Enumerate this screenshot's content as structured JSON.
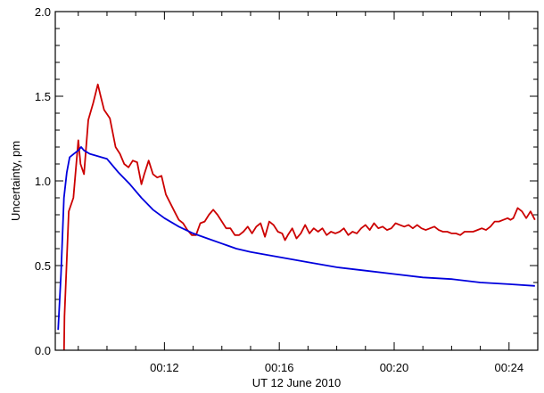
{
  "chart_data": {
    "type": "line",
    "title": "",
    "xlabel": "UT 12 June 2010",
    "ylabel": "Uncertainty, pm",
    "x_unit": "minutes (UT clock time 00:MM)",
    "xlim": [
      8.2,
      25.0
    ],
    "ylim": [
      0.0,
      2.0
    ],
    "x_ticks": [
      {
        "value": 12,
        "label": "00:12"
      },
      {
        "value": 16,
        "label": "00:16"
      },
      {
        "value": 20,
        "label": "00:20"
      },
      {
        "value": 24,
        "label": "00:24"
      }
    ],
    "y_ticks": [
      {
        "value": 0.0,
        "label": "0.0"
      },
      {
        "value": 0.5,
        "label": "0.5"
      },
      {
        "value": 1.0,
        "label": "1.0"
      },
      {
        "value": 1.5,
        "label": "1.5"
      },
      {
        "value": 2.0,
        "label": "2.0"
      }
    ],
    "grid": false,
    "legend": "none",
    "series": [
      {
        "color": "#cc0000",
        "x": [
          8.5,
          8.52,
          8.67,
          8.83,
          9.0,
          9.08,
          9.2,
          9.35,
          9.52,
          9.68,
          9.78,
          9.9,
          10.1,
          10.3,
          10.45,
          10.6,
          10.75,
          10.9,
          11.05,
          11.2,
          11.3,
          11.45,
          11.6,
          11.75,
          11.9,
          12.05,
          12.2,
          12.35,
          12.5,
          12.65,
          12.8,
          12.95,
          13.1,
          13.25,
          13.4,
          13.55,
          13.7,
          13.85,
          14.0,
          14.15,
          14.3,
          14.45,
          14.6,
          14.75,
          14.9,
          15.05,
          15.2,
          15.35,
          15.5,
          15.65,
          15.8,
          15.95,
          16.1,
          16.2,
          16.3,
          16.45,
          16.6,
          16.75,
          16.9,
          17.05,
          17.2,
          17.35,
          17.5,
          17.65,
          17.8,
          17.95,
          18.1,
          18.25,
          18.4,
          18.55,
          18.7,
          18.85,
          19.0,
          19.15,
          19.3,
          19.45,
          19.6,
          19.75,
          19.9,
          20.05,
          20.2,
          20.35,
          20.5,
          20.65,
          20.8,
          20.95,
          21.1,
          21.25,
          21.4,
          21.55,
          21.7,
          21.85,
          22.0,
          22.15,
          22.3,
          22.45,
          22.6,
          22.75,
          22.9,
          23.05,
          23.2,
          23.35,
          23.5,
          23.65,
          23.8,
          23.95,
          24.05,
          24.15,
          24.3,
          24.45,
          24.6,
          24.75,
          24.9
        ],
        "y": [
          -0.05,
          0.2,
          0.82,
          0.9,
          1.24,
          1.1,
          1.04,
          1.36,
          1.46,
          1.57,
          1.5,
          1.42,
          1.37,
          1.2,
          1.16,
          1.1,
          1.08,
          1.12,
          1.11,
          0.98,
          1.04,
          1.12,
          1.04,
          1.02,
          1.03,
          0.92,
          0.87,
          0.82,
          0.77,
          0.75,
          0.71,
          0.68,
          0.68,
          0.75,
          0.76,
          0.8,
          0.83,
          0.8,
          0.76,
          0.72,
          0.72,
          0.68,
          0.68,
          0.7,
          0.73,
          0.69,
          0.73,
          0.75,
          0.67,
          0.76,
          0.74,
          0.7,
          0.69,
          0.65,
          0.68,
          0.72,
          0.66,
          0.69,
          0.74,
          0.69,
          0.72,
          0.7,
          0.72,
          0.68,
          0.7,
          0.69,
          0.7,
          0.72,
          0.68,
          0.7,
          0.69,
          0.72,
          0.74,
          0.71,
          0.75,
          0.72,
          0.73,
          0.71,
          0.72,
          0.75,
          0.74,
          0.73,
          0.74,
          0.72,
          0.74,
          0.72,
          0.71,
          0.72,
          0.73,
          0.71,
          0.7,
          0.7,
          0.69,
          0.69,
          0.68,
          0.7,
          0.7,
          0.7,
          0.71,
          0.72,
          0.71,
          0.73,
          0.76,
          0.76,
          0.77,
          0.78,
          0.77,
          0.78,
          0.84,
          0.82,
          0.78,
          0.82,
          0.77
        ]
      },
      {
        "color": "#0000dd",
        "x": [
          8.3,
          8.4,
          8.5,
          8.6,
          8.7,
          8.85,
          9.0,
          9.1,
          9.2,
          9.4,
          9.6,
          9.8,
          10.0,
          10.4,
          10.8,
          11.2,
          11.6,
          12.0,
          12.5,
          13.0,
          13.5,
          14.0,
          14.5,
          15.0,
          16.0,
          17.0,
          18.0,
          19.0,
          20.0,
          21.0,
          22.0,
          23.0,
          24.0,
          24.9
        ],
        "y": [
          0.12,
          0.45,
          0.9,
          1.05,
          1.14,
          1.16,
          1.18,
          1.2,
          1.18,
          1.16,
          1.15,
          1.14,
          1.13,
          1.05,
          0.98,
          0.9,
          0.83,
          0.78,
          0.73,
          0.69,
          0.66,
          0.63,
          0.6,
          0.58,
          0.55,
          0.52,
          0.49,
          0.47,
          0.45,
          0.43,
          0.42,
          0.4,
          0.39,
          0.38
        ]
      }
    ]
  }
}
